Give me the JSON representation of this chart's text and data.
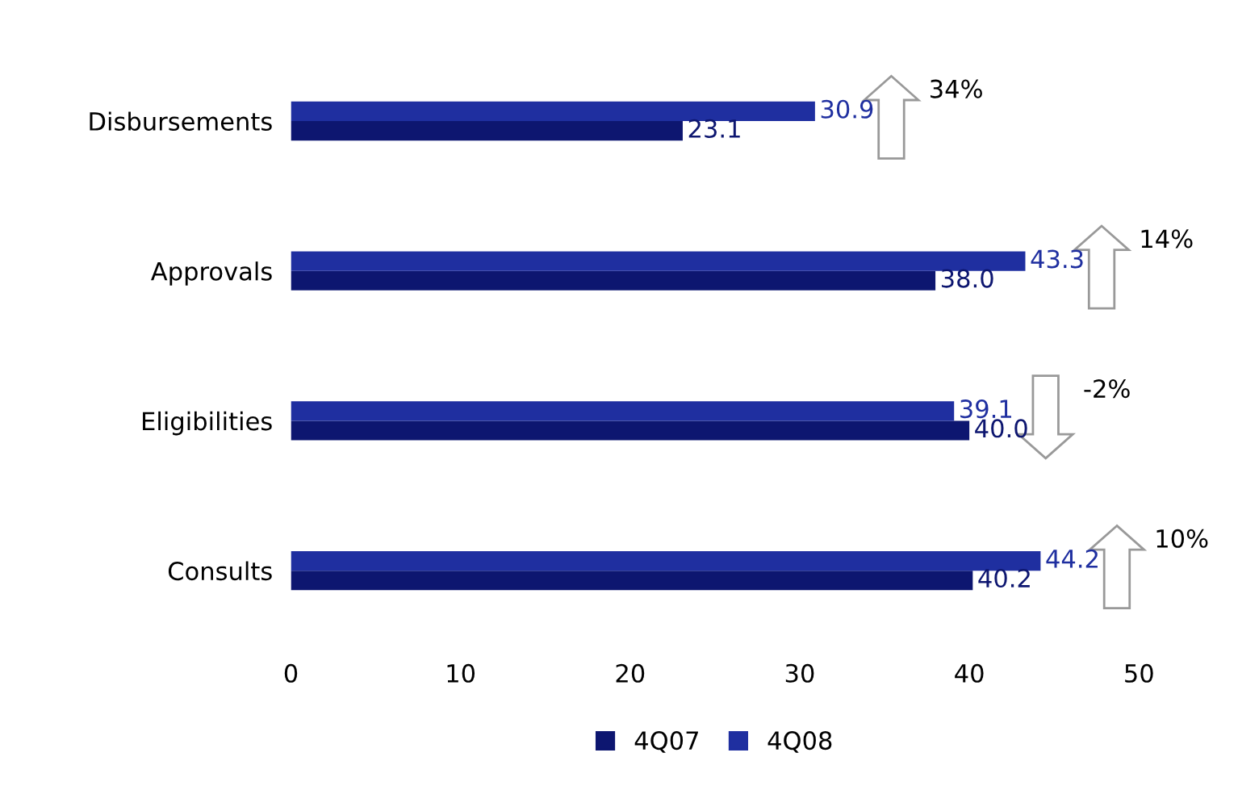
{
  "chart_data": {
    "type": "bar",
    "orientation": "horizontal",
    "categories": [
      "Disbursements",
      "Approvals",
      "Eligibilities",
      "Consults"
    ],
    "series": [
      {
        "name": "4Q07",
        "color": "#0d1670",
        "values": [
          23.1,
          38.0,
          40.0,
          40.2
        ],
        "value_labels": [
          "23.1",
          "38.0",
          "40.0",
          "40.2"
        ]
      },
      {
        "name": "4Q08",
        "color": "#1f2fa0",
        "values": [
          30.9,
          43.3,
          39.1,
          44.2
        ],
        "value_labels": [
          "30.9",
          "43.3",
          "39.1",
          "44.2"
        ]
      }
    ],
    "xlim": [
      0,
      50
    ],
    "xticks": [
      0,
      10,
      20,
      30,
      40,
      50
    ],
    "grid": false,
    "legend": "bottom",
    "annotations": [
      "34%",
      "14%",
      "-2%",
      "10%"
    ]
  }
}
